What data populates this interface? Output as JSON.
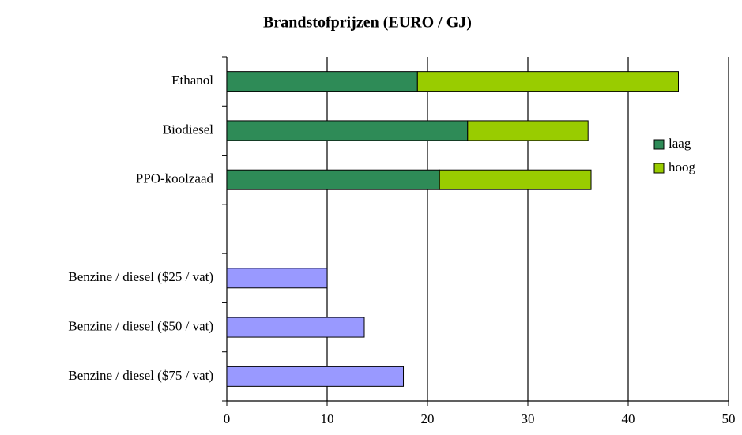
{
  "chart_data": {
    "type": "stacked-barh",
    "title": "Brandstofprijzen (EURO / GJ)",
    "categories": [
      "Ethanol",
      "Biodiesel",
      "PPO-koolzaad",
      null,
      "Benzine / diesel ($25 / vat)",
      "Benzine / diesel ($50 / vat)",
      "Benzine / diesel ($75 / vat)"
    ],
    "series": [
      {
        "name": "laag",
        "color": "#2e8b57",
        "values": [
          19,
          24,
          21.2,
          null,
          10,
          13.7,
          17.6
        ],
        "colors": [
          "#2e8b57",
          "#2e8b57",
          "#2e8b57",
          null,
          "#9999ff",
          "#9999ff",
          "#9999ff"
        ]
      },
      {
        "name": "hoog",
        "color": "#99cc00",
        "values": [
          26,
          12,
          15.1,
          null,
          null,
          null,
          null
        ]
      }
    ],
    "xlim": [
      0,
      50
    ],
    "xticks": [
      0,
      10,
      20,
      30,
      40,
      50
    ],
    "grid": true,
    "legend": "right"
  }
}
